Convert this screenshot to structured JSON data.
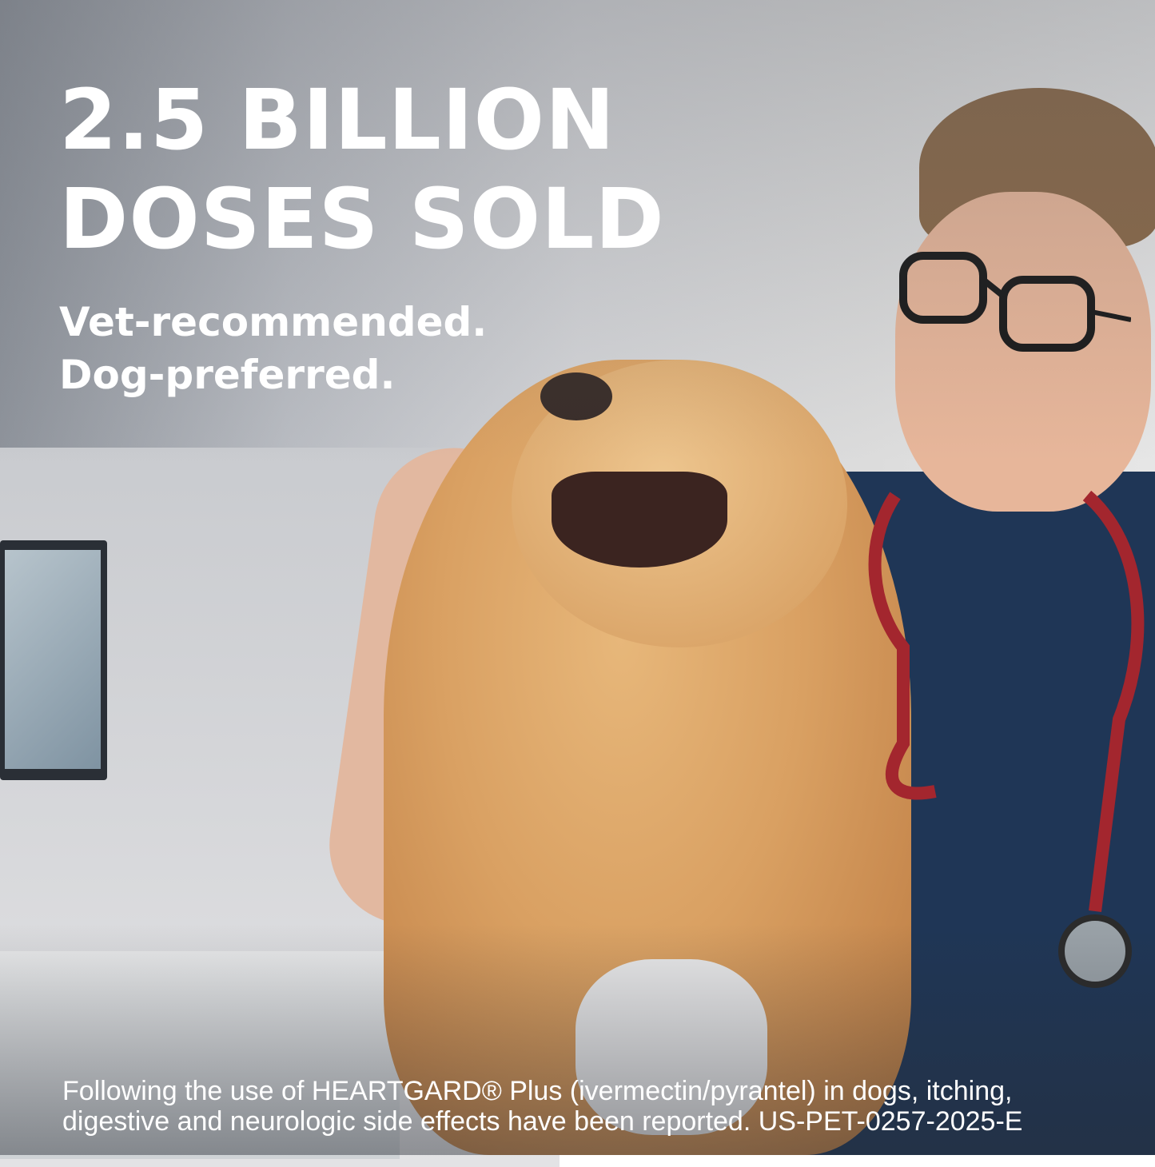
{
  "headline": {
    "line1": "2.5 BILLION",
    "line2": "DOSES SOLD"
  },
  "subheadline": {
    "line1": "Vet-recommended.",
    "line2": "Dog-preferred."
  },
  "disclaimer": "Following the use of HEARTGARD® Plus (ivermectin/pyrantel) in dogs, itching, digestive and neurologic side effects have been reported. US-PET-0257-2025-E",
  "colors": {
    "text": "#ffffff",
    "scrubs": "#1f3656",
    "dog_fur": "#d9a062",
    "stethoscope": "#a3262e"
  }
}
